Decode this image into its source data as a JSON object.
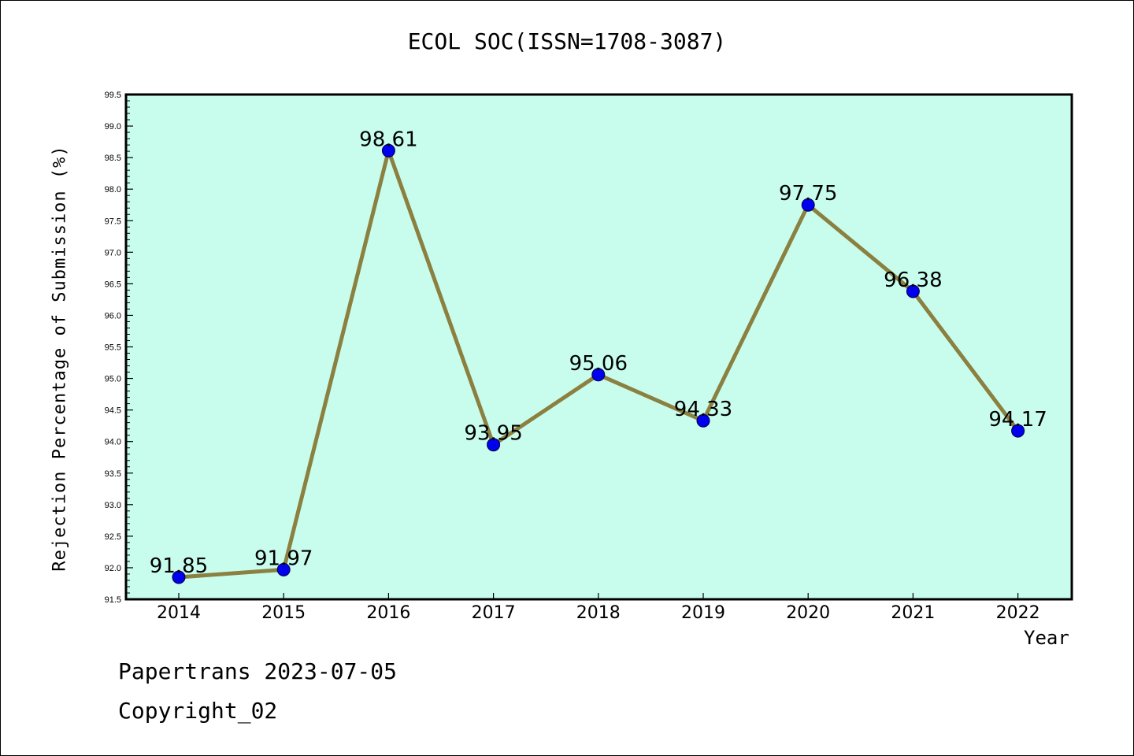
{
  "chart_data": {
    "type": "line",
    "title": "ECOL SOC(ISSN=1708-3087)",
    "xlabel": "Year",
    "ylabel": "Rejection Percentage of Submission (%)",
    "categories": [
      "2014",
      "2015",
      "2016",
      "2017",
      "2018",
      "2019",
      "2020",
      "2021",
      "2022"
    ],
    "series": [
      {
        "values": [
          91.85,
          91.97,
          98.61,
          93.95,
          95.06,
          94.33,
          97.75,
          96.38,
          94.17
        ],
        "labels": [
          "91.85",
          "91.97",
          "98.61",
          "93.95",
          "95.06",
          "94.33",
          "97.75",
          "96.38",
          "94.17"
        ]
      }
    ],
    "yticks": [
      "91.5",
      "92.0",
      "92.5",
      "93.0",
      "93.5",
      "94.0",
      "94.5",
      "95.0",
      "95.5",
      "96.0",
      "96.5",
      "97.0",
      "97.5",
      "98.0",
      "98.5",
      "99.0",
      "99.5"
    ],
    "ylim": [
      91.5,
      99.5
    ],
    "grid": false,
    "colors": {
      "plot_background": "#c8fdee",
      "line": "#8b8040",
      "marker": "#0000ee"
    }
  },
  "footer": {
    "line1": "Papertrans 2023-07-05",
    "line2": "Copyright_02"
  }
}
